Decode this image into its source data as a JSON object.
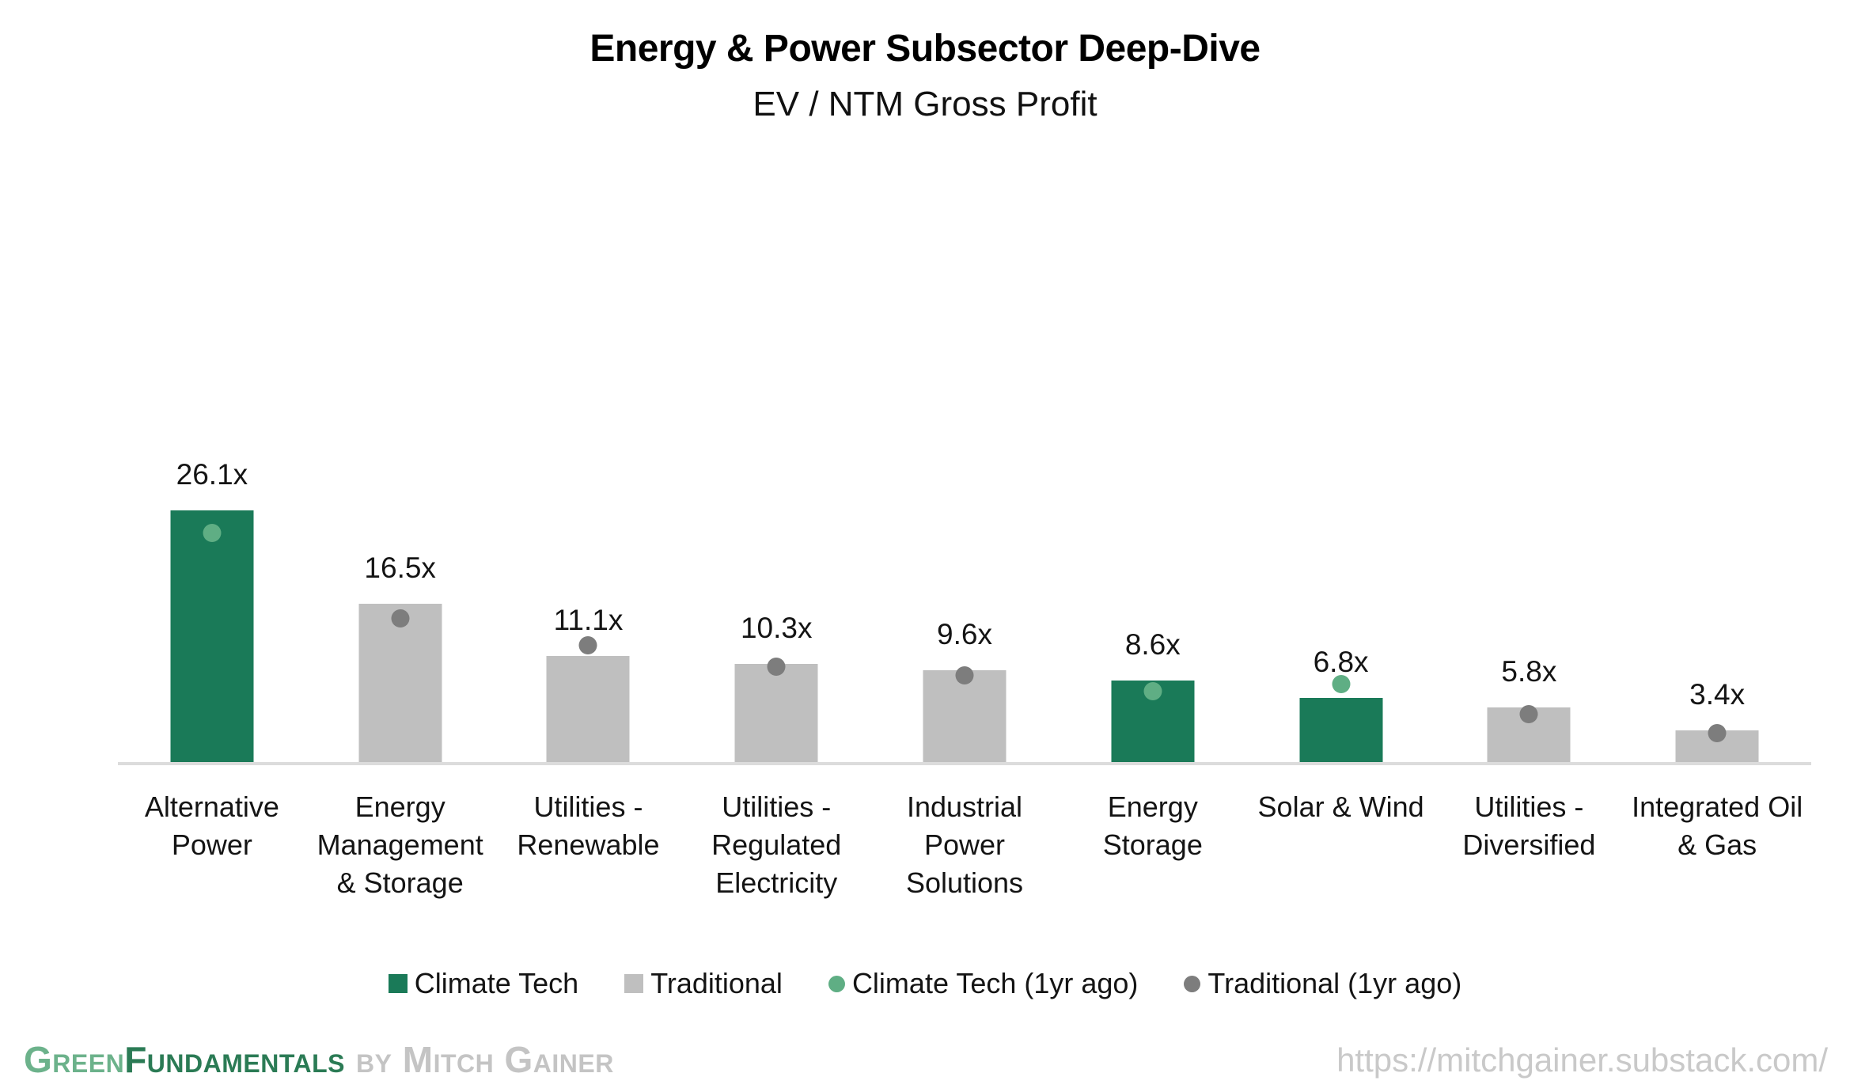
{
  "chart_data": {
    "type": "bar",
    "title": "Energy & Power Subsector Deep-Dive",
    "subtitle": "EV / NTM Gross Profit",
    "value_suffix": "x",
    "ylim": [
      0,
      28
    ],
    "grid": false,
    "y_axis_shown": false,
    "legend_position": "bottom",
    "categories": [
      "Alternative Power",
      "Energy Management & Storage",
      "Utilities - Renewable",
      "Utilities - Regulated Electricity",
      "Industrial Power Solutions",
      "Energy Storage",
      "Solar & Wind",
      "Utilities - Diversified",
      "Integrated Oil & Gas"
    ],
    "series": [
      {
        "name": "EV / NTM Gross Profit (current)",
        "style": "bar",
        "values": [
          26.1,
          16.5,
          11.1,
          10.3,
          9.6,
          8.6,
          6.8,
          5.8,
          3.4
        ],
        "labels": [
          "26.1x",
          "16.5x",
          "11.1x",
          "10.3x",
          "9.6x",
          "8.6x",
          "6.8x",
          "5.8x",
          "3.4x"
        ],
        "groups": [
          "Climate Tech",
          "Traditional",
          "Traditional",
          "Traditional",
          "Traditional",
          "Climate Tech",
          "Climate Tech",
          "Traditional",
          "Traditional"
        ]
      },
      {
        "name": "1yr ago (dot markers, values estimated from chart)",
        "style": "dot",
        "values": [
          23.8,
          15.0,
          12.2,
          10.0,
          9.1,
          7.5,
          8.2,
          5.1,
          3.1
        ],
        "groups": [
          "Climate Tech (1yr ago)",
          "Traditional (1yr ago)",
          "Traditional (1yr ago)",
          "Traditional (1yr ago)",
          "Traditional (1yr ago)",
          "Climate Tech (1yr ago)",
          "Climate Tech (1yr ago)",
          "Traditional (1yr ago)",
          "Traditional (1yr ago)"
        ]
      }
    ],
    "legend": [
      {
        "label": "Climate Tech",
        "shape": "square",
        "color": "#1a7a58"
      },
      {
        "label": "Traditional",
        "shape": "square",
        "color": "#bfbfbf"
      },
      {
        "label": "Climate Tech (1yr ago)",
        "shape": "circle",
        "color": "#5fae84"
      },
      {
        "label": "Traditional (1yr ago)",
        "shape": "circle",
        "color": "#7d7d7d"
      }
    ]
  },
  "colors": {
    "Climate Tech": "#1a7a58",
    "Traditional": "#bfbfbf",
    "Climate Tech (1yr ago)": "#5fae84",
    "Traditional (1yr ago)": "#7d7d7d",
    "axis_line": "#dcdcdc",
    "brand_green_light": "#6cb28b",
    "brand_green_dark": "#2b7b55",
    "brand_gray": "#c4c4c4",
    "url_gray": "#c9c9c9"
  },
  "footer": {
    "brand_green": "Green",
    "brand_rest": "Fundamentals",
    "byline": "by Mitch Gainer",
    "url": "https://mitchgainer.substack.com/"
  }
}
